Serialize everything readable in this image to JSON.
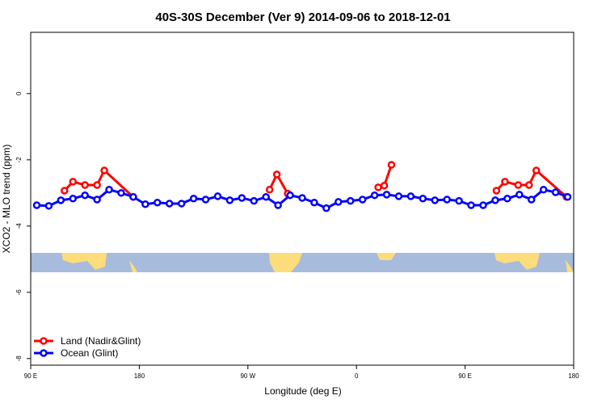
{
  "chart_data": {
    "type": "line",
    "title": "40S-30S December (Ver 9)   2014-09-06 to 2018-12-01",
    "x_label": "Longitude (deg E)",
    "y_label": "XCO2 - MLO trend (ppm)",
    "xlim": [
      90,
      540
    ],
    "xticks": [
      {
        "value": 90,
        "label": "90 E"
      },
      {
        "value": 180,
        "label": "180"
      },
      {
        "value": 270,
        "label": "90 W"
      },
      {
        "value": 360,
        "label": "0"
      },
      {
        "value": 450,
        "label": "90 E"
      },
      {
        "value": 540,
        "label": "180"
      }
    ],
    "ylim": [
      -8.2,
      1.85
    ],
    "yticks": [
      0,
      -2,
      -4,
      -6,
      -8
    ],
    "legend": "bottom-left",
    "series": [
      {
        "name": "Land (Nadir&Glint)",
        "color": "#ff0000",
        "x": [
          118,
          125,
          135,
          145,
          151,
          175,
          null,
          288,
          294,
          303,
          null,
          378,
          383,
          389,
          null,
          476,
          483,
          494,
          503,
          509,
          534
        ],
        "values": [
          -2.93,
          -2.66,
          -2.76,
          -2.76,
          -2.32,
          -3.12,
          null,
          -2.9,
          -2.44,
          -3.02,
          null,
          -2.83,
          -2.78,
          -2.15,
          null,
          -2.93,
          -2.66,
          -2.76,
          -2.76,
          -2.32,
          -3.12
        ]
      },
      {
        "name": "Ocean (Glint)",
        "color": "#0000ff",
        "x": [
          95,
          105,
          115,
          125,
          135,
          145,
          155,
          165,
          175,
          185,
          195,
          205,
          215,
          225,
          235,
          245,
          255,
          265,
          275,
          285,
          295,
          305,
          315,
          325,
          335,
          345,
          355,
          365,
          375,
          385,
          395,
          405,
          415,
          425,
          435,
          445,
          455,
          465,
          475,
          485,
          495,
          505,
          515,
          525,
          535
        ],
        "values": [
          -3.37,
          -3.39,
          -3.22,
          -3.17,
          -3.07,
          -3.2,
          -2.9,
          -3.0,
          -3.12,
          -3.34,
          -3.29,
          -3.32,
          -3.32,
          -3.17,
          -3.2,
          -3.1,
          -3.22,
          -3.15,
          -3.24,
          -3.12,
          -3.37,
          -3.07,
          -3.15,
          -3.29,
          -3.46,
          -3.27,
          -3.24,
          -3.2,
          -3.07,
          -3.05,
          -3.1,
          -3.1,
          -3.17,
          -3.22,
          -3.2,
          -3.24,
          -3.37,
          -3.37,
          -3.22,
          -3.17,
          -3.05,
          -3.2,
          -2.9,
          -2.98,
          -3.12
        ]
      }
    ]
  }
}
